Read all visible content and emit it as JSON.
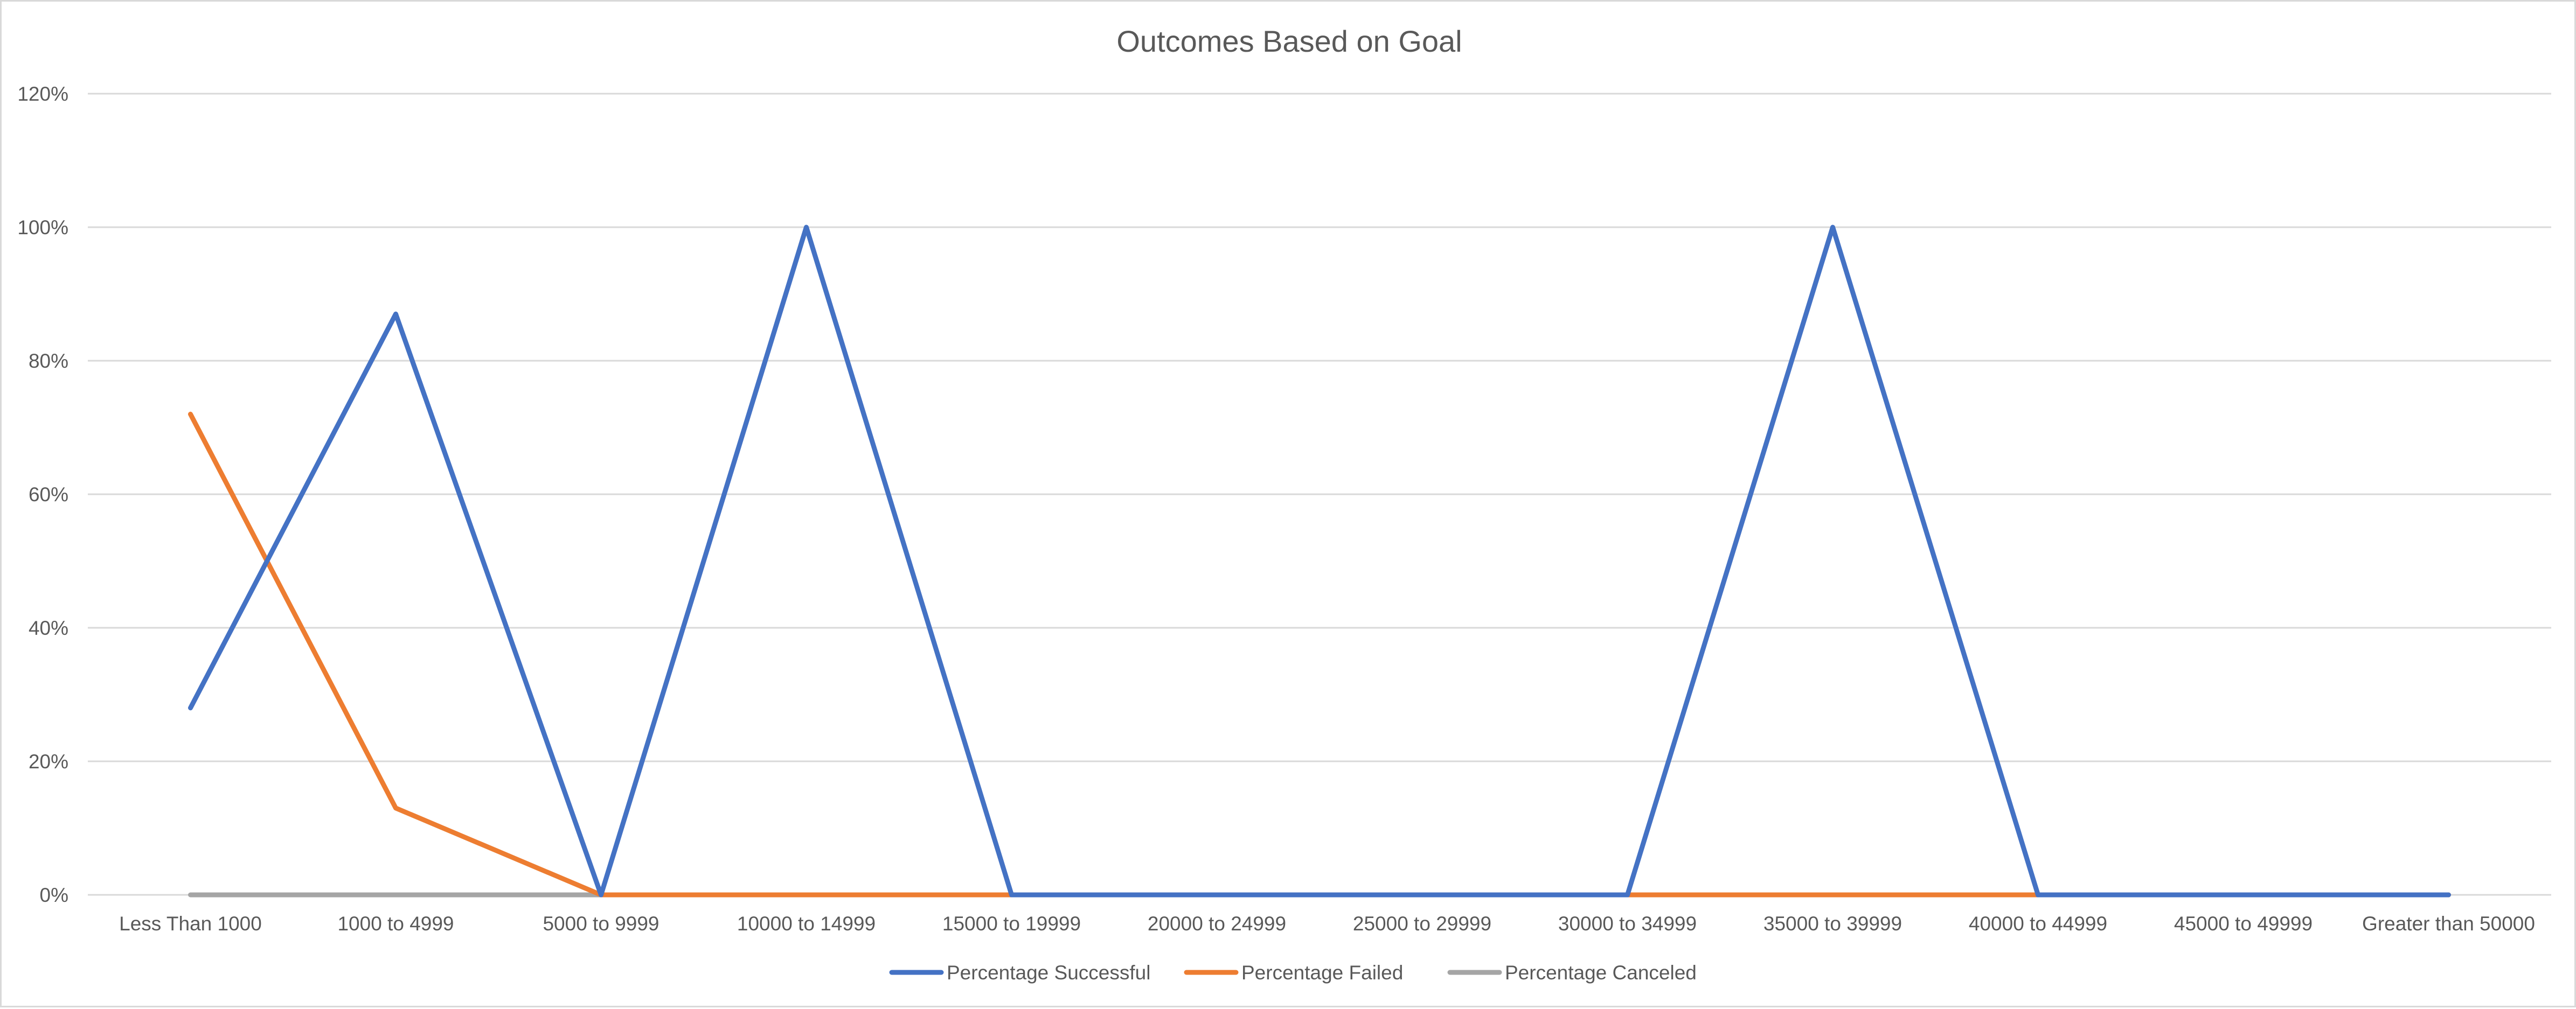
{
  "chart_data": {
    "type": "line",
    "title": "Outcomes Based on Goal",
    "categories": [
      "Less Than 1000",
      "1000 to 4999",
      "5000 to 9999",
      "10000 to 14999",
      "15000 to 19999",
      "20000 to 24999",
      "25000 to 29999",
      "30000 to 34999",
      "35000 to 39999",
      "40000 to 44999",
      "45000 to 49999",
      "Greater than 50000"
    ],
    "series": [
      {
        "name": "Percentage Successful",
        "color": "#4472c4",
        "values": [
          0.28,
          0.87,
          0,
          1,
          0,
          0,
          0,
          0,
          1,
          0,
          0,
          0
        ]
      },
      {
        "name": "Percentage Failed",
        "color": "#ed7d31",
        "values": [
          0.72,
          0.13,
          0,
          0,
          0,
          0,
          0,
          0,
          0,
          0,
          0,
          0
        ]
      },
      {
        "name": "Percentage Canceled",
        "color": "#a5a5a5",
        "values": [
          0,
          0,
          0,
          0,
          0,
          0,
          0,
          0,
          0,
          0,
          0,
          0
        ]
      }
    ],
    "ylim": [
      0,
      1.2
    ],
    "yticks": [
      0,
      0.2,
      0.4,
      0.6,
      0.8,
      1.0,
      1.2
    ],
    "ytick_labels": [
      "0%",
      "20%",
      "40%",
      "60%",
      "80%",
      "100%",
      "120%"
    ],
    "grid": true,
    "legend_position": "bottom",
    "xlabel": "",
    "ylabel": ""
  }
}
